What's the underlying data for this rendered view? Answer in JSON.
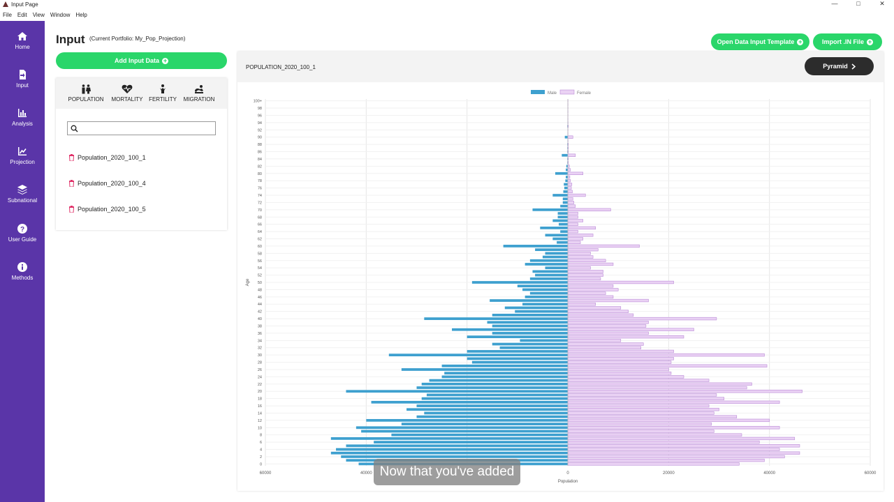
{
  "window": {
    "title": "Input Page",
    "controls": {
      "minimize": "—",
      "maximize": "□",
      "close": "✕"
    }
  },
  "menu": [
    "File",
    "Edit",
    "View",
    "Window",
    "Help"
  ],
  "sidebar": {
    "items": [
      {
        "label": "Home",
        "icon": "home-icon"
      },
      {
        "label": "Input",
        "icon": "input-icon"
      },
      {
        "label": "Analysis",
        "icon": "analysis-icon"
      },
      {
        "label": "Projection",
        "icon": "projection-icon"
      },
      {
        "label": "Subnational",
        "icon": "layers-icon"
      },
      {
        "label": "User Guide",
        "icon": "help-icon"
      },
      {
        "label": "Methods",
        "icon": "info-icon"
      }
    ],
    "color": "#5a35a8"
  },
  "header": {
    "title": "Input",
    "portfolio": "(Current Portfolio: My_Pop_Projection)",
    "open_template": "Open Data Input Template",
    "import_in": "Import .IN File"
  },
  "left_panel": {
    "add_button": "Add Input Data",
    "categories": [
      {
        "label": "POPULATION",
        "icon": "population-icon"
      },
      {
        "label": "MORTALITY",
        "icon": "mortality-icon"
      },
      {
        "label": "FERTILITY",
        "icon": "fertility-icon"
      },
      {
        "label": "MIGRATION",
        "icon": "migration-icon"
      }
    ],
    "search_placeholder": "",
    "files": [
      "Population_2020_100_1",
      "Population_2020_100_4",
      "Population_2020_100_5"
    ]
  },
  "chart_panel": {
    "name": "POPULATION_2020_100_1",
    "pyramid_button": "Pyramid"
  },
  "caption": "Now that you've added",
  "colors": {
    "green": "#2ad66a",
    "male": "#3ea0cf",
    "female": "#ead2f4",
    "female_border": "#b98ad6"
  },
  "chart_data": {
    "type": "bar",
    "orientation": "horizontal",
    "stacked_pyramid": true,
    "legend": [
      "Male",
      "Female"
    ],
    "legend_position": "top-center",
    "ylabel": "Age",
    "xlabel": "Population",
    "x_ticks": [
      "60000",
      "40000",
      "20000",
      "0",
      "20000",
      "40000",
      "60000"
    ],
    "xlim": [
      -60000,
      60000
    ],
    "grid": true,
    "y_tick_labels": [
      "0",
      "2",
      "4",
      "6",
      "8",
      "10",
      "12",
      "14",
      "16",
      "18",
      "20",
      "22",
      "24",
      "26",
      "28",
      "30",
      "32",
      "34",
      "36",
      "38",
      "40",
      "42",
      "44",
      "46",
      "48",
      "50",
      "52",
      "54",
      "56",
      "58",
      "60",
      "62",
      "64",
      "66",
      "68",
      "70",
      "72",
      "74",
      "76",
      "78",
      "80",
      "82",
      "84",
      "86",
      "88",
      "90",
      "92",
      "94",
      "96",
      "98",
      "100+"
    ],
    "ages": [
      0,
      1,
      2,
      3,
      4,
      5,
      6,
      7,
      8,
      9,
      10,
      11,
      12,
      13,
      14,
      15,
      16,
      17,
      18,
      19,
      20,
      21,
      22,
      23,
      24,
      25,
      26,
      27,
      28,
      29,
      30,
      31,
      32,
      33,
      34,
      35,
      36,
      37,
      38,
      39,
      40,
      41,
      42,
      43,
      44,
      45,
      46,
      47,
      48,
      49,
      50,
      51,
      52,
      53,
      54,
      55,
      56,
      57,
      58,
      59,
      60,
      61,
      62,
      63,
      64,
      65,
      66,
      67,
      68,
      69,
      70,
      71,
      72,
      73,
      74,
      75,
      76,
      77,
      78,
      79,
      80,
      81,
      82,
      83,
      84,
      85,
      86,
      87,
      88,
      89,
      90,
      91,
      92,
      93,
      94,
      95,
      96,
      97,
      98,
      99,
      100
    ],
    "series": [
      {
        "name": "Male",
        "values": [
          41500,
          44000,
          45000,
          47000,
          46000,
          44000,
          38500,
          47000,
          35000,
          41000,
          42000,
          33000,
          40000,
          30000,
          28500,
          32000,
          30000,
          39000,
          29000,
          28000,
          44000,
          30000,
          29000,
          27500,
          25000,
          24500,
          33000,
          25000,
          19000,
          20000,
          35500,
          20000,
          13500,
          15000,
          9500,
          20000,
          15000,
          23000,
          15000,
          16000,
          28500,
          15000,
          10500,
          12500,
          9000,
          15500,
          8500,
          7500,
          9000,
          10000,
          19000,
          7500,
          6500,
          7000,
          4500,
          8500,
          7500,
          5000,
          4500,
          6500,
          12800,
          2200,
          3000,
          4500,
          1500,
          5500,
          1800,
          3000,
          2000,
          2000,
          7000,
          1500,
          1000,
          1000,
          3000,
          900,
          700,
          800,
          500,
          400,
          2500,
          400,
          300,
          100,
          100,
          1200,
          100,
          100,
          100,
          50,
          600,
          30,
          20,
          100,
          50,
          20,
          10,
          20,
          10,
          5,
          5
        ]
      },
      {
        "name": "Female",
        "values": [
          34000,
          39000,
          43000,
          46000,
          42000,
          46000,
          38000,
          45000,
          34500,
          29000,
          42000,
          28500,
          40000,
          33500,
          29000,
          30000,
          28000,
          42000,
          31000,
          29500,
          46500,
          35500,
          36500,
          28000,
          23000,
          20500,
          20000,
          39500,
          20500,
          21000,
          39000,
          21000,
          14500,
          15000,
          10500,
          23000,
          16000,
          25000,
          15500,
          16000,
          29500,
          13000,
          12000,
          10500,
          5500,
          16000,
          9000,
          7500,
          10000,
          9000,
          21000,
          6500,
          7000,
          7000,
          4500,
          9000,
          7500,
          5000,
          4500,
          6000,
          14200,
          2500,
          3000,
          5000,
          2000,
          5500,
          2000,
          3000,
          2000,
          2000,
          8500,
          1500,
          1200,
          1000,
          3500,
          900,
          700,
          800,
          500,
          400,
          3000,
          500,
          300,
          100,
          100,
          1500,
          100,
          100,
          100,
          50,
          1000,
          30,
          20,
          100,
          50,
          20,
          10,
          20,
          10,
          5,
          5
        ]
      }
    ]
  }
}
